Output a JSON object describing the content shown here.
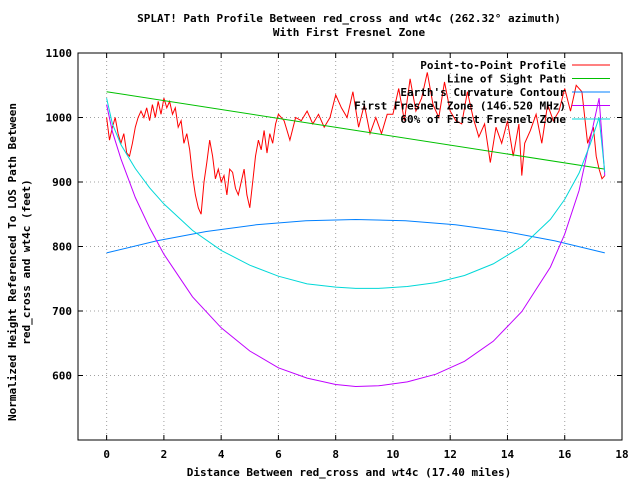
{
  "chart_data": {
    "type": "line",
    "title": "SPLAT! Path Profile Between red_cross and wt4c (262.32° azimuth)",
    "subtitle": "With First Fresnel Zone",
    "xlabel": "Distance Between red_cross and wt4c (17.40 miles)",
    "ylabel_line1": "Normalized Height Referenced To LOS Path Between",
    "ylabel_line2": "red_cross and wt4c (feet)",
    "xlim": [
      -1,
      18
    ],
    "ylim": [
      500,
      1100
    ],
    "xticks": [
      0,
      2,
      4,
      6,
      8,
      10,
      12,
      14,
      16,
      18
    ],
    "yticks": [
      600,
      700,
      800,
      900,
      1000,
      1100
    ],
    "grid": true,
    "legend": "top-right",
    "series": [
      {
        "name": "Point-to-Point Profile",
        "color": "#ff0000",
        "x": [
          0,
          0.1,
          0.2,
          0.3,
          0.4,
          0.5,
          0.6,
          0.7,
          0.8,
          0.9,
          1.0,
          1.1,
          1.2,
          1.3,
          1.4,
          1.5,
          1.6,
          1.7,
          1.8,
          1.9,
          2.0,
          2.1,
          2.2,
          2.3,
          2.4,
          2.5,
          2.6,
          2.7,
          2.8,
          2.9,
          3.0,
          3.1,
          3.2,
          3.3,
          3.4,
          3.5,
          3.6,
          3.7,
          3.8,
          3.9,
          4.0,
          4.1,
          4.2,
          4.3,
          4.4,
          4.5,
          4.6,
          4.7,
          4.8,
          4.9,
          5.0,
          5.1,
          5.2,
          5.3,
          5.4,
          5.5,
          5.6,
          5.7,
          5.8,
          5.9,
          6.0,
          6.2,
          6.4,
          6.6,
          6.8,
          7.0,
          7.2,
          7.4,
          7.6,
          7.8,
          8.0,
          8.2,
          8.4,
          8.6,
          8.8,
          9.0,
          9.2,
          9.4,
          9.6,
          9.8,
          10.0,
          10.2,
          10.4,
          10.6,
          10.8,
          11.0,
          11.2,
          11.4,
          11.6,
          11.8,
          12.0,
          12.2,
          12.4,
          12.6,
          12.8,
          13.0,
          13.2,
          13.4,
          13.6,
          13.8,
          14.0,
          14.2,
          14.4,
          14.5,
          14.6,
          14.8,
          15.0,
          15.2,
          15.4,
          15.6,
          15.8,
          16.0,
          16.2,
          16.4,
          16.6,
          16.8,
          17.0,
          17.1,
          17.2,
          17.3,
          17.4
        ],
        "y": [
          1000,
          965,
          985,
          1000,
          975,
          960,
          975,
          945,
          940,
          960,
          985,
          1000,
          1010,
          1000,
          1015,
          995,
          1020,
          1000,
          1025,
          1005,
          1030,
          1015,
          1025,
          1005,
          1015,
          985,
          995,
          960,
          975,
          950,
          910,
          880,
          860,
          850,
          900,
          930,
          965,
          940,
          905,
          920,
          900,
          910,
          880,
          920,
          915,
          890,
          880,
          900,
          920,
          880,
          860,
          900,
          940,
          965,
          950,
          980,
          945,
          975,
          960,
          990,
          1005,
          995,
          965,
          1000,
          995,
          1010,
          990,
          1005,
          985,
          1000,
          1035,
          1015,
          1000,
          1040,
          985,
          1020,
          975,
          1000,
          975,
          1005,
          1005,
          1045,
          995,
          1060,
          1010,
          1030,
          1070,
          1020,
          1000,
          1055,
          1010,
          995,
          990,
          1040,
          1000,
          970,
          990,
          930,
          985,
          960,
          995,
          940,
          990,
          910,
          960,
          980,
          1005,
          960,
          1020,
          995,
          1010,
          1045,
          1010,
          1050,
          1040,
          960,
          985,
          940,
          920,
          905,
          910
        ]
      },
      {
        "name": "Line of Sight Path",
        "color": "#00c000",
        "x": [
          0,
          17.4
        ],
        "y": [
          1040,
          920
        ]
      },
      {
        "name": "Earth's Curvature Contour",
        "color": "#0080ff",
        "x": [
          0,
          1.74,
          3.48,
          5.22,
          6.96,
          8.7,
          10.44,
          12.18,
          13.92,
          15.66,
          17.4
        ],
        "y": [
          790,
          808.7,
          823.2,
          833.6,
          839.8,
          841.9,
          839.8,
          833.6,
          823.2,
          808.7,
          790
        ]
      },
      {
        "name": "First Fresnel Zone (146.520 MHz)",
        "color": "#c000ff",
        "x": [
          0,
          0.2,
          0.5,
          1.0,
          1.5,
          2.0,
          3.0,
          4.0,
          5.0,
          6.0,
          7.0,
          8.0,
          8.7,
          9.5,
          10.5,
          11.5,
          12.5,
          13.5,
          14.5,
          15.5,
          16.0,
          16.5,
          16.9,
          17.2,
          17.4
        ],
        "y": [
          1020,
          978,
          936,
          876,
          829,
          788,
          722,
          674,
          638,
          612,
          596,
          586,
          583,
          584,
          590,
          602,
          622,
          653,
          699,
          768,
          819,
          887,
          968,
          1030,
          910
        ]
      },
      {
        "name": "60% of First Fresnel Zone",
        "color": "#00d8d8",
        "x": [
          0,
          0.2,
          0.5,
          1.0,
          1.5,
          2.0,
          3.0,
          4.0,
          5.0,
          6.0,
          7.0,
          8.0,
          8.7,
          9.5,
          10.5,
          11.5,
          12.5,
          13.5,
          14.5,
          15.5,
          16.0,
          16.5,
          16.9,
          17.2,
          17.4
        ],
        "y": [
          1030,
          990,
          958,
          921,
          891,
          866,
          825,
          794,
          771,
          754,
          742,
          737,
          735,
          735,
          738,
          744,
          755,
          773,
          800,
          842,
          873,
          914,
          960,
          1000,
          915
        ]
      }
    ]
  }
}
